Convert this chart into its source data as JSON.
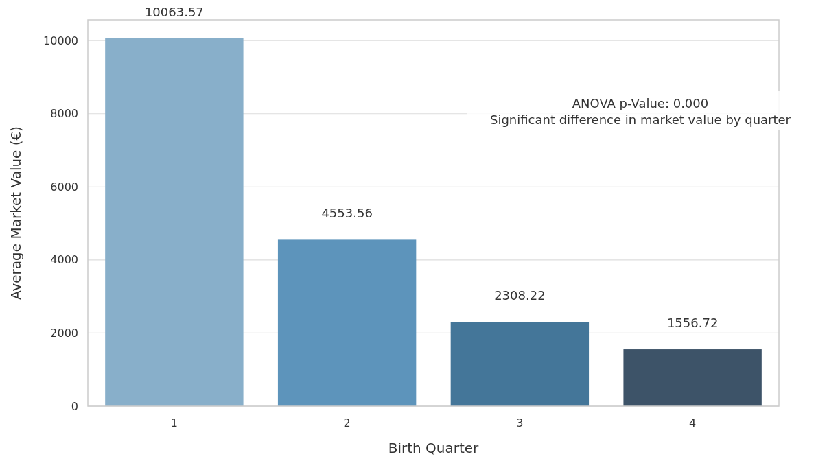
{
  "chart_data": {
    "type": "bar",
    "xlabel": "Birth Quarter",
    "ylabel": "Average Market Value (€)",
    "categories": [
      "1",
      "2",
      "3",
      "4"
    ],
    "values": [
      10063.57,
      4553.56,
      2308.22,
      1556.72
    ],
    "colors": [
      "#88afca",
      "#5d94bb",
      "#447699",
      "#3d5368"
    ],
    "ylim": [
      0,
      10566.75
    ],
    "yticks": [
      0,
      2000,
      4000,
      6000,
      8000,
      10000
    ],
    "grid": "y",
    "data_labels": true,
    "annotations": [
      "ANOVA p-Value: 0.000\nSignificant difference in market value by quarter"
    ]
  }
}
